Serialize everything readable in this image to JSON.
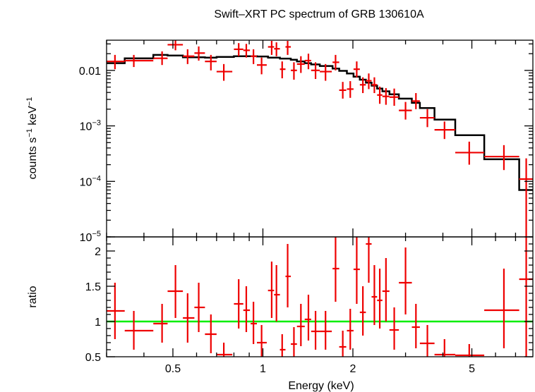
{
  "chart_data": {
    "type": "scatter",
    "title": "Swift–XRT PC spectrum of GRB 130610A",
    "xlabel": "Energy (keV)",
    "x_scale": "log",
    "xlim": [
      0.3,
      8.0
    ],
    "x_ticks": [
      {
        "value": 0.5,
        "label": "0.5"
      },
      {
        "value": 1,
        "label": "1"
      },
      {
        "value": 2,
        "label": "2"
      },
      {
        "value": 5,
        "label": "5"
      }
    ],
    "panels": {
      "spectrum": {
        "ylabel_main": "counts s",
        "ylabel_sup1": "−1",
        "ylabel_mid": " keV",
        "ylabel_sup2": "−1",
        "y_scale": "log",
        "ylim": [
          1e-05,
          0.035
        ],
        "y_ticks": [
          {
            "value": 0.01,
            "base": "0.01",
            "exp": ""
          },
          {
            "value": 0.001,
            "base": "10",
            "exp": "−3"
          },
          {
            "value": 0.0001,
            "base": "10",
            "exp": "−4"
          },
          {
            "value": 1e-05,
            "base": "10",
            "exp": "−5"
          }
        ],
        "data": [
          {
            "x": 0.32,
            "xlo": 0.3,
            "xhi": 0.345,
            "y": 0.0145,
            "ylo": 0.0105,
            "yhi": 0.019
          },
          {
            "x": 0.37,
            "xlo": 0.345,
            "xhi": 0.43,
            "y": 0.015,
            "ylo": 0.0115,
            "yhi": 0.019
          },
          {
            "x": 0.46,
            "xlo": 0.43,
            "xhi": 0.48,
            "y": 0.0165,
            "ylo": 0.0125,
            "yhi": 0.022
          },
          {
            "x": 0.51,
            "xlo": 0.48,
            "xhi": 0.54,
            "y": 0.029,
            "ylo": 0.023,
            "yhi": 0.035
          },
          {
            "x": 0.56,
            "xlo": 0.54,
            "xhi": 0.59,
            "y": 0.018,
            "ylo": 0.013,
            "yhi": 0.024
          },
          {
            "x": 0.61,
            "xlo": 0.59,
            "xhi": 0.64,
            "y": 0.0205,
            "ylo": 0.015,
            "yhi": 0.027
          },
          {
            "x": 0.67,
            "xlo": 0.64,
            "xhi": 0.7,
            "y": 0.0145,
            "ylo": 0.01,
            "yhi": 0.019
          },
          {
            "x": 0.74,
            "xlo": 0.7,
            "xhi": 0.79,
            "y": 0.0095,
            "ylo": 0.0065,
            "yhi": 0.013
          },
          {
            "x": 0.83,
            "xlo": 0.8,
            "xhi": 0.86,
            "y": 0.024,
            "ylo": 0.018,
            "yhi": 0.031
          },
          {
            "x": 0.88,
            "xlo": 0.86,
            "xhi": 0.905,
            "y": 0.023,
            "ylo": 0.017,
            "yhi": 0.03
          },
          {
            "x": 0.93,
            "xlo": 0.91,
            "xhi": 0.955,
            "y": 0.018,
            "ylo": 0.013,
            "yhi": 0.024
          },
          {
            "x": 0.99,
            "xlo": 0.955,
            "xhi": 1.03,
            "y": 0.0125,
            "ylo": 0.0085,
            "yhi": 0.017
          },
          {
            "x": 1.07,
            "xlo": 1.04,
            "xhi": 1.09,
            "y": 0.0265,
            "ylo": 0.019,
            "yhi": 0.034
          },
          {
            "x": 1.11,
            "xlo": 1.09,
            "xhi": 1.14,
            "y": 0.0245,
            "ylo": 0.018,
            "yhi": 0.032
          },
          {
            "x": 1.16,
            "xlo": 1.14,
            "xhi": 1.19,
            "y": 0.0105,
            "ylo": 0.0072,
            "yhi": 0.0145
          },
          {
            "x": 1.21,
            "xlo": 1.19,
            "xhi": 1.24,
            "y": 0.0265,
            "ylo": 0.019,
            "yhi": 0.034
          },
          {
            "x": 1.27,
            "xlo": 1.24,
            "xhi": 1.3,
            "y": 0.01,
            "ylo": 0.0068,
            "yhi": 0.014
          },
          {
            "x": 1.34,
            "xlo": 1.3,
            "xhi": 1.38,
            "y": 0.013,
            "ylo": 0.009,
            "yhi": 0.018
          },
          {
            "x": 1.42,
            "xlo": 1.38,
            "xhi": 1.45,
            "y": 0.015,
            "ylo": 0.0105,
            "yhi": 0.02
          },
          {
            "x": 1.5,
            "xlo": 1.45,
            "xhi": 1.55,
            "y": 0.01,
            "ylo": 0.007,
            "yhi": 0.014
          },
          {
            "x": 1.62,
            "xlo": 1.55,
            "xhi": 1.7,
            "y": 0.0095,
            "ylo": 0.0065,
            "yhi": 0.013
          },
          {
            "x": 1.75,
            "xlo": 1.71,
            "xhi": 1.8,
            "y": 0.014,
            "ylo": 0.01,
            "yhi": 0.019
          },
          {
            "x": 1.85,
            "xlo": 1.8,
            "xhi": 1.9,
            "y": 0.0044,
            "ylo": 0.0031,
            "yhi": 0.0062
          },
          {
            "x": 1.96,
            "xlo": 1.91,
            "xhi": 2.01,
            "y": 0.0046,
            "ylo": 0.0032,
            "yhi": 0.0064
          },
          {
            "x": 2.06,
            "xlo": 2.01,
            "xhi": 2.11,
            "y": 0.0105,
            "ylo": 0.0075,
            "yhi": 0.0145
          },
          {
            "x": 2.16,
            "xlo": 2.11,
            "xhi": 2.21,
            "y": 0.0055,
            "ylo": 0.0039,
            "yhi": 0.0075
          },
          {
            "x": 2.26,
            "xlo": 2.21,
            "xhi": 2.31,
            "y": 0.0065,
            "ylo": 0.0046,
            "yhi": 0.0088
          },
          {
            "x": 2.36,
            "xlo": 2.31,
            "xhi": 2.41,
            "y": 0.0055,
            "ylo": 0.0039,
            "yhi": 0.0075
          },
          {
            "x": 2.46,
            "xlo": 2.41,
            "xhi": 2.51,
            "y": 0.0036,
            "ylo": 0.0025,
            "yhi": 0.0051
          },
          {
            "x": 2.58,
            "xlo": 2.51,
            "xhi": 2.65,
            "y": 0.0034,
            "ylo": 0.0024,
            "yhi": 0.0048
          },
          {
            "x": 2.75,
            "xlo": 2.65,
            "xhi": 2.85,
            "y": 0.0033,
            "ylo": 0.0023,
            "yhi": 0.0047
          },
          {
            "x": 3.0,
            "xlo": 2.85,
            "xhi": 3.15,
            "y": 0.0019,
            "ylo": 0.0013,
            "yhi": 0.0027
          },
          {
            "x": 3.25,
            "xlo": 3.15,
            "xhi": 3.35,
            "y": 0.0028,
            "ylo": 0.002,
            "yhi": 0.0039
          },
          {
            "x": 3.55,
            "xlo": 3.35,
            "xhi": 3.75,
            "y": 0.0014,
            "ylo": 0.00095,
            "yhi": 0.002
          },
          {
            "x": 4.05,
            "xlo": 3.75,
            "xhi": 4.4,
            "y": 0.00085,
            "ylo": 0.00058,
            "yhi": 0.0012
          },
          {
            "x": 4.9,
            "xlo": 4.4,
            "xhi": 5.5,
            "y": 0.00033,
            "ylo": 0.0002,
            "yhi": 0.00052
          },
          {
            "x": 6.4,
            "xlo": 5.5,
            "xhi": 7.2,
            "y": 0.00028,
            "ylo": 0.00016,
            "yhi": 0.00045
          },
          {
            "x": 7.6,
            "xlo": 7.2,
            "xhi": 8.0,
            "y": 0.00011,
            "ylo": 1e-05,
            "yhi": 0.00026
          }
        ],
        "model_steps": [
          [
            0.3,
            0.0135
          ],
          [
            0.345,
            0.0165
          ],
          [
            0.43,
            0.019
          ],
          [
            0.48,
            0.0185
          ],
          [
            0.54,
            0.0172
          ],
          [
            0.64,
            0.017
          ],
          [
            0.7,
            0.0175
          ],
          [
            0.8,
            0.018
          ],
          [
            0.955,
            0.0178
          ],
          [
            1.04,
            0.017
          ],
          [
            1.14,
            0.0163
          ],
          [
            1.24,
            0.0155
          ],
          [
            1.3,
            0.0145
          ],
          [
            1.38,
            0.0135
          ],
          [
            1.45,
            0.0128
          ],
          [
            1.55,
            0.012
          ],
          [
            1.71,
            0.0108
          ],
          [
            1.8,
            0.0098
          ],
          [
            1.91,
            0.0088
          ],
          [
            2.01,
            0.0077
          ],
          [
            2.11,
            0.0068
          ],
          [
            2.21,
            0.006
          ],
          [
            2.31,
            0.0053
          ],
          [
            2.41,
            0.0047
          ],
          [
            2.51,
            0.0042
          ],
          [
            2.65,
            0.0037
          ],
          [
            2.85,
            0.0031
          ],
          [
            3.15,
            0.0026
          ],
          [
            3.35,
            0.0021
          ],
          [
            3.75,
            0.0013
          ],
          [
            4.4,
            0.00068
          ],
          [
            5.5,
            0.00025
          ],
          [
            7.2,
            7e-05
          ],
          [
            8.0,
            7e-05
          ]
        ]
      },
      "ratio": {
        "ylabel": "ratio",
        "y_scale": "linear",
        "ylim": [
          0.5,
          2.2
        ],
        "y_ticks": [
          {
            "value": 0.5,
            "label": "0.5"
          },
          {
            "value": 1,
            "label": "1"
          },
          {
            "value": 1.5,
            "label": "1.5"
          },
          {
            "value": 2,
            "label": "2"
          }
        ],
        "reference_line": 1,
        "data": [
          {
            "x": 0.32,
            "xlo": 0.3,
            "xhi": 0.345,
            "y": 1.15,
            "ylo": 0.75,
            "yhi": 1.55
          },
          {
            "x": 0.37,
            "xlo": 0.345,
            "xhi": 0.43,
            "y": 0.87,
            "ylo": 0.6,
            "yhi": 1.15
          },
          {
            "x": 0.46,
            "xlo": 0.43,
            "xhi": 0.48,
            "y": 0.97,
            "ylo": 0.7,
            "yhi": 1.25
          },
          {
            "x": 0.51,
            "xlo": 0.48,
            "xhi": 0.54,
            "y": 1.43,
            "ylo": 1.05,
            "yhi": 1.8
          },
          {
            "x": 0.56,
            "xlo": 0.54,
            "xhi": 0.59,
            "y": 1.05,
            "ylo": 0.7,
            "yhi": 1.4
          },
          {
            "x": 0.61,
            "xlo": 0.59,
            "xhi": 0.64,
            "y": 1.2,
            "ylo": 0.85,
            "yhi": 1.55
          },
          {
            "x": 0.67,
            "xlo": 0.64,
            "xhi": 0.7,
            "y": 0.82,
            "ylo": 0.55,
            "yhi": 1.1
          },
          {
            "x": 0.74,
            "xlo": 0.7,
            "xhi": 0.79,
            "y": 0.53,
            "ylo": 0.38,
            "yhi": 0.7
          },
          {
            "x": 0.83,
            "xlo": 0.8,
            "xhi": 0.86,
            "y": 1.25,
            "ylo": 0.9,
            "yhi": 1.6
          },
          {
            "x": 0.88,
            "xlo": 0.86,
            "xhi": 0.905,
            "y": 1.16,
            "ylo": 0.85,
            "yhi": 1.5
          },
          {
            "x": 0.93,
            "xlo": 0.91,
            "xhi": 0.955,
            "y": 0.97,
            "ylo": 0.68,
            "yhi": 1.28
          },
          {
            "x": 0.99,
            "xlo": 0.955,
            "xhi": 1.03,
            "y": 0.7,
            "ylo": 0.48,
            "yhi": 0.95
          },
          {
            "x": 1.07,
            "xlo": 1.04,
            "xhi": 1.09,
            "y": 1.44,
            "ylo": 1.05,
            "yhi": 1.85
          },
          {
            "x": 1.11,
            "xlo": 1.09,
            "xhi": 1.14,
            "y": 1.38,
            "ylo": 1.0,
            "yhi": 1.8
          },
          {
            "x": 1.16,
            "xlo": 1.14,
            "xhi": 1.19,
            "y": 0.6,
            "ylo": 0.42,
            "yhi": 0.82
          },
          {
            "x": 1.21,
            "xlo": 1.19,
            "xhi": 1.24,
            "y": 1.64,
            "ylo": 1.2,
            "yhi": 2.1
          },
          {
            "x": 1.27,
            "xlo": 1.24,
            "xhi": 1.3,
            "y": 0.68,
            "ylo": 0.47,
            "yhi": 0.92
          },
          {
            "x": 1.34,
            "xlo": 1.3,
            "xhi": 1.38,
            "y": 0.93,
            "ylo": 0.65,
            "yhi": 1.25
          },
          {
            "x": 1.42,
            "xlo": 1.38,
            "xhi": 1.45,
            "y": 1.03,
            "ylo": 0.73,
            "yhi": 1.38
          },
          {
            "x": 1.5,
            "xlo": 1.45,
            "xhi": 1.55,
            "y": 0.86,
            "ylo": 0.6,
            "yhi": 1.15
          },
          {
            "x": 1.62,
            "xlo": 1.55,
            "xhi": 1.7,
            "y": 0.86,
            "ylo": 0.6,
            "yhi": 1.15
          },
          {
            "x": 1.75,
            "xlo": 1.71,
            "xhi": 1.8,
            "y": 1.75,
            "ylo": 1.28,
            "yhi": 2.25
          },
          {
            "x": 1.85,
            "xlo": 1.8,
            "xhi": 1.9,
            "y": 0.64,
            "ylo": 0.44,
            "yhi": 0.87
          },
          {
            "x": 1.96,
            "xlo": 1.91,
            "xhi": 2.01,
            "y": 0.87,
            "ylo": 0.6,
            "yhi": 1.18
          },
          {
            "x": 2.06,
            "xlo": 2.01,
            "xhi": 2.11,
            "y": 1.74,
            "ylo": 1.25,
            "yhi": 2.25
          },
          {
            "x": 2.16,
            "xlo": 2.11,
            "xhi": 2.21,
            "y": 1.13,
            "ylo": 0.8,
            "yhi": 1.5
          },
          {
            "x": 2.26,
            "xlo": 2.21,
            "xhi": 2.31,
            "y": 2.1,
            "ylo": 1.55,
            "yhi": 2.25
          },
          {
            "x": 2.36,
            "xlo": 2.31,
            "xhi": 2.41,
            "y": 1.35,
            "ylo": 0.95,
            "yhi": 1.8
          },
          {
            "x": 2.46,
            "xlo": 2.41,
            "xhi": 2.51,
            "y": 1.3,
            "ylo": 0.9,
            "yhi": 1.75
          },
          {
            "x": 2.58,
            "xlo": 2.51,
            "xhi": 2.65,
            "y": 1.43,
            "ylo": 1.0,
            "yhi": 1.9
          },
          {
            "x": 2.75,
            "xlo": 2.65,
            "xhi": 2.85,
            "y": 0.88,
            "ylo": 0.6,
            "yhi": 1.2
          },
          {
            "x": 3.0,
            "xlo": 2.85,
            "xhi": 3.15,
            "y": 1.55,
            "ylo": 1.1,
            "yhi": 2.05
          },
          {
            "x": 3.25,
            "xlo": 3.15,
            "xhi": 3.35,
            "y": 0.92,
            "ylo": 0.62,
            "yhi": 1.25
          },
          {
            "x": 3.55,
            "xlo": 3.35,
            "xhi": 3.75,
            "y": 0.69,
            "ylo": 0.47,
            "yhi": 0.95
          },
          {
            "x": 4.05,
            "xlo": 3.75,
            "xhi": 4.4,
            "y": 0.53,
            "ylo": 0.35,
            "yhi": 0.75
          },
          {
            "x": 4.9,
            "xlo": 4.4,
            "xhi": 5.5,
            "y": 0.52,
            "ylo": 0.36,
            "yhi": 0.68
          },
          {
            "x": 6.4,
            "xlo": 5.5,
            "xhi": 7.2,
            "y": 1.16,
            "ylo": 0.62,
            "yhi": 1.75
          },
          {
            "x": 7.6,
            "xlo": 7.2,
            "xhi": 8.0,
            "y": 1.6,
            "ylo": 0.4,
            "yhi": 2.25
          }
        ]
      }
    },
    "colors": {
      "data": "#ee0000",
      "model": "#000000",
      "reference": "#00ee00",
      "axes": "#000000"
    }
  }
}
